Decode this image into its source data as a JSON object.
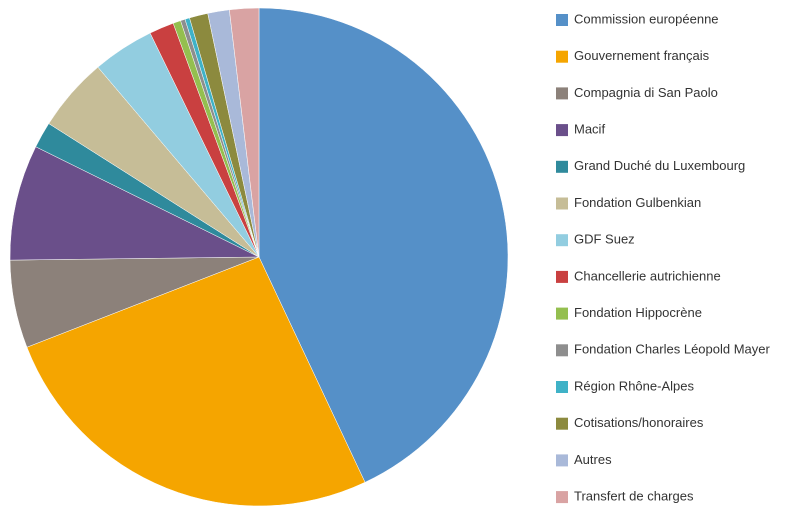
{
  "chart_data": {
    "type": "pie",
    "categories": [
      "Commission européenne",
      "Gouvernement français",
      "Compagnia di San Paolo",
      "Macif",
      "Grand Duché du Luxembourg",
      "Fondation Gulbenkian",
      "GDF Suez",
      "Chancellerie autrichienne",
      "Fondation Hippocrène",
      "Fondation Charles Léopold Mayer",
      "Région Rhône-Alpes",
      "Cotisations/honoraires",
      "Autres",
      "Transfert de charges"
    ],
    "values": [
      43,
      26.1,
      5.7,
      7.5,
      1.7,
      4.8,
      4,
      1.6,
      0.5,
      0.3,
      0.3,
      1.2,
      1.4,
      1.9
    ],
    "colors": [
      "#5590c8",
      "#f5a500",
      "#8c817a",
      "#6a4f8a",
      "#2f8a9c",
      "#c6bd97",
      "#92cde0",
      "#c94040",
      "#94bf4f",
      "#8e8e8e",
      "#3fb2c7",
      "#8c8a3e",
      "#a9b9d9",
      "#d9a3a3"
    ],
    "legend": "right"
  }
}
